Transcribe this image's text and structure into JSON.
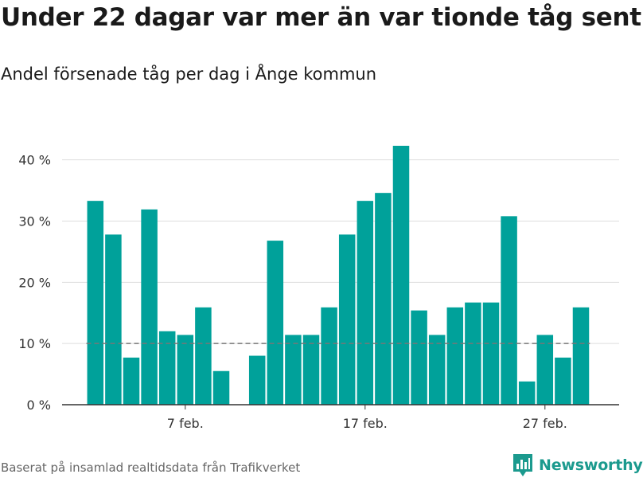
{
  "title": "Under 22 dagar var mer än var tionde tåg sent",
  "subtitle": "Andel försenade tåg per dag i Ånge kommun",
  "footer": "Baserat på insamlad realtidsdata från Trafikverket",
  "brand": {
    "name": "Newsworthy",
    "icon": "newsworthy-logo-icon",
    "color": "#1b9a8e"
  },
  "colors": {
    "bar": "#00a19a",
    "reference_line": "#777777",
    "grid": "#dddddd"
  },
  "chart_data": {
    "type": "bar",
    "title": "Under 22 dagar var mer än var tionde tåg sent",
    "subtitle": "Andel försenade tåg per dag i Ånge kommun",
    "xlabel": "",
    "ylabel": "",
    "x_unit": "day",
    "x": [
      "2020-02-02",
      "2020-02-03",
      "2020-02-04",
      "2020-02-05",
      "2020-02-06",
      "2020-02-07",
      "2020-02-08",
      "2020-02-09",
      "2020-02-10",
      "2020-02-11",
      "2020-02-12",
      "2020-02-13",
      "2020-02-14",
      "2020-02-15",
      "2020-02-16",
      "2020-02-17",
      "2020-02-18",
      "2020-02-19",
      "2020-02-20",
      "2020-02-21",
      "2020-02-22",
      "2020-02-23",
      "2020-02-24",
      "2020-02-25",
      "2020-02-26",
      "2020-02-27",
      "2020-02-28",
      "2020-02-29"
    ],
    "values": [
      33.3,
      27.8,
      7.7,
      31.9,
      12.0,
      11.4,
      15.9,
      5.5,
      null,
      8.0,
      26.8,
      11.4,
      11.4,
      15.9,
      27.8,
      33.3,
      34.6,
      42.3,
      15.4,
      11.4,
      15.9,
      16.7,
      16.7,
      30.8,
      3.8,
      11.4,
      7.7,
      15.9
    ],
    "xticks": [
      {
        "date": "2020-02-07",
        "label": "7 feb."
      },
      {
        "date": "2020-02-17",
        "label": "17 feb."
      },
      {
        "date": "2020-02-27",
        "label": "27 feb."
      }
    ],
    "yticks": [
      {
        "value": 0,
        "label": "0 %"
      },
      {
        "value": 10,
        "label": "10 %"
      },
      {
        "value": 20,
        "label": "20 %"
      },
      {
        "value": 30,
        "label": "30 %"
      },
      {
        "value": 40,
        "label": "40 %"
      }
    ],
    "ylim": [
      0,
      42.3
    ],
    "reference_line": 10,
    "grid": true,
    "legend": "none"
  }
}
